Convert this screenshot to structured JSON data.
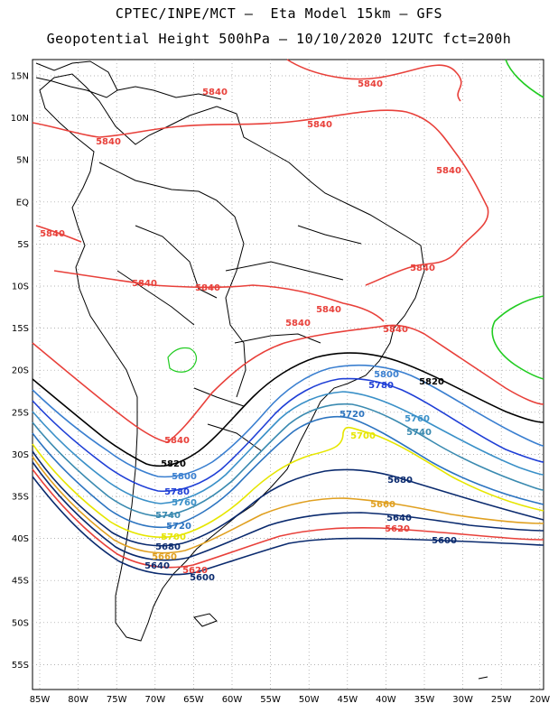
{
  "header": {
    "line1": "CPTEC/INPE/MCT –  Eta Model 15km – GFS",
    "line2": "Geopotential Height 500hPa – 10/10/2020 12UTC fct=200h"
  },
  "axes": {
    "lat_labels": [
      "15N",
      "10N",
      "5N",
      "EQ",
      "5S",
      "10S",
      "15S",
      "20S",
      "25S",
      "30S",
      "35S",
      "40S",
      "45S",
      "50S",
      "55S"
    ],
    "lon_labels": [
      "85W",
      "80W",
      "75W",
      "70W",
      "65W",
      "60W",
      "55W",
      "50W",
      "45W",
      "40W",
      "35W",
      "30W",
      "25W",
      "20W"
    ]
  },
  "contours": [
    {
      "value": "5840",
      "color": "#e8403a"
    },
    {
      "value": "5820",
      "color": "#000000"
    },
    {
      "value": "5800",
      "color": "#3a7fd0"
    },
    {
      "value": "5780",
      "color": "#1f3fd6"
    },
    {
      "value": "5760",
      "color": "#3a90c8"
    },
    {
      "value": "5740",
      "color": "#3a8ab0"
    },
    {
      "value": "5720",
      "color": "#2c74c0"
    },
    {
      "value": "5700",
      "color": "#e6e600"
    },
    {
      "value": "5680",
      "color": "#0a2a6e"
    },
    {
      "value": "5660",
      "color": "#e0a020"
    },
    {
      "value": "5640",
      "color": "#0a2a6e"
    },
    {
      "value": "5620",
      "color": "#e8403a"
    },
    {
      "value": "5600",
      "color": "#0a2a6e"
    }
  ],
  "labels": {
    "l5840_a": "5840",
    "l5840_b": "5840",
    "l5840_c": "5840",
    "l5840_d": "5840",
    "l5840_e": "5840",
    "l5840_f": "5840",
    "l5840_g": "5840",
    "l5840_h": "5840",
    "l5840_i": "5840",
    "l5840_j": "5840",
    "l5840_k": "5840",
    "l5840_l": "5840",
    "l5840_m": "5840",
    "l5840_n": "5840",
    "l5820_a": "5820",
    "l5820_b": "5820",
    "l5800_a": "5800",
    "l5800_b": "5800",
    "l5780_a": "5780",
    "l5780_b": "5780",
    "l5760_a": "5760",
    "l5760_b": "5760",
    "l5740_a": "5740",
    "l5740_b": "5740",
    "l5720_a": "5720",
    "l5720_b": "5720",
    "l5700_a": "5700",
    "l5700_b": "5700",
    "l5680_a": "5680",
    "l5680_b": "5680",
    "l5660_a": "5660",
    "l5660_b": "5660",
    "l5640_a": "5640",
    "l5640_b": "5640",
    "l5620_a": "5620",
    "l5620_b": "5620",
    "l5600_a": "5600",
    "l5600_b": "5600"
  }
}
